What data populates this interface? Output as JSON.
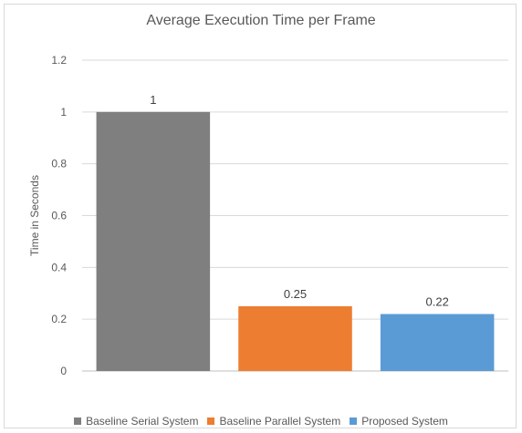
{
  "chart_data": {
    "type": "bar",
    "title": "Average Execution Time per Frame",
    "ylabel": "Time in Seconds",
    "xlabel": "",
    "categories": [
      "Baseline Serial System",
      "Baseline Parallel System",
      "Proposed System"
    ],
    "values": [
      1,
      0.25,
      0.22
    ],
    "data_labels": [
      "1",
      "0.25",
      "0.22"
    ],
    "colors": [
      "#7f7f7f",
      "#ed7d31",
      "#5b9bd5"
    ],
    "ylim": [
      0,
      1.2
    ],
    "yticks": [
      "0",
      "0.2",
      "0.4",
      "0.6",
      "0.8",
      "1",
      "1.2"
    ],
    "grid": true,
    "legend_position": "bottom"
  }
}
